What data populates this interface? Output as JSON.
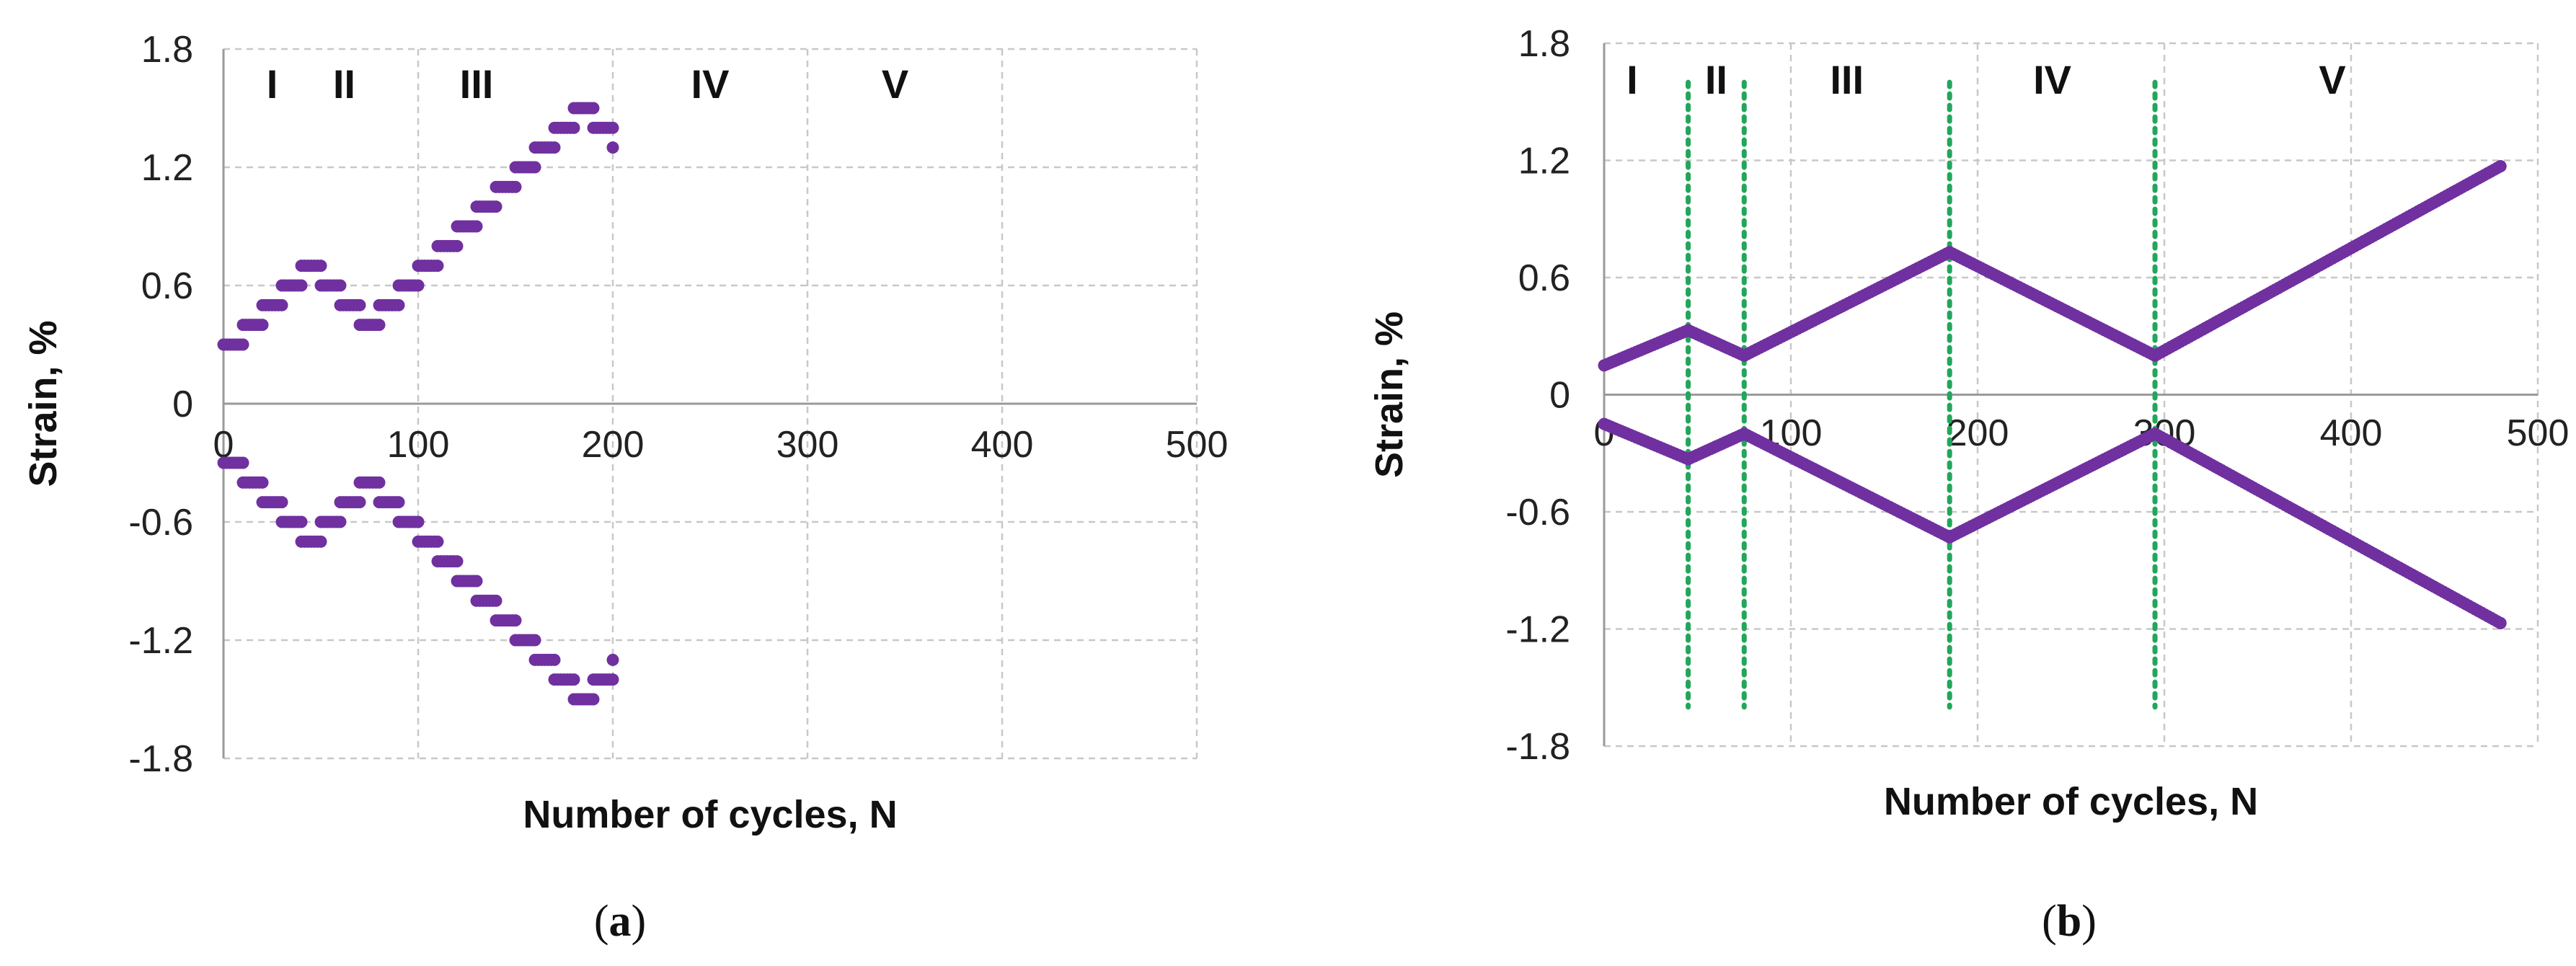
{
  "chart_data": [
    {
      "type": "scatter",
      "panel_label": "(a)",
      "panel_letter": "a",
      "xlabel": "Number of cycles, N",
      "ylabel": "Strain, %",
      "xlim": [
        0,
        500
      ],
      "ylim": [
        -1.8,
        1.8
      ],
      "xticks": [
        "0",
        "100",
        "200",
        "300",
        "400",
        "500"
      ],
      "yticks": [
        "1.8",
        "1.2",
        "0.6",
        "0",
        "-0.6",
        "-1.2",
        "-1.8"
      ],
      "grid": true,
      "marker_color": "#7030a0",
      "phases": [
        {
          "label": "I",
          "x": 25
        },
        {
          "label": "II",
          "x": 62
        },
        {
          "label": "III",
          "x": 130
        },
        {
          "label": "IV",
          "x": 250
        },
        {
          "label": "V",
          "x": 345
        }
      ],
      "series": [
        {
          "points": [
            [
              0,
              0.3
            ],
            [
              10,
              0.3
            ],
            [
              10,
              0.4
            ],
            [
              20,
              0.4
            ],
            [
              20,
              0.5
            ],
            [
              30,
              0.5
            ],
            [
              30,
              0.6
            ],
            [
              40,
              0.6
            ],
            [
              40,
              0.7
            ],
            [
              50,
              0.7
            ],
            [
              50,
              0.6
            ],
            [
              60,
              0.6
            ],
            [
              60,
              0.5
            ],
            [
              70,
              0.5
            ],
            [
              70,
              0.4
            ],
            [
              80,
              0.4
            ],
            [
              80,
              0.5
            ],
            [
              90,
              0.5
            ],
            [
              90,
              0.6
            ],
            [
              100,
              0.6
            ],
            [
              100,
              0.7
            ],
            [
              110,
              0.7
            ],
            [
              110,
              0.8
            ],
            [
              120,
              0.8
            ],
            [
              120,
              0.9
            ],
            [
              130,
              0.9
            ],
            [
              130,
              1.0
            ],
            [
              140,
              1.0
            ],
            [
              140,
              1.1
            ],
            [
              150,
              1.1
            ],
            [
              150,
              1.2
            ],
            [
              160,
              1.2
            ],
            [
              160,
              1.3
            ],
            [
              170,
              1.3
            ],
            [
              170,
              1.4
            ],
            [
              180,
              1.4
            ],
            [
              180,
              1.5
            ],
            [
              190,
              1.5
            ],
            [
              190,
              1.4
            ],
            [
              200,
              1.4
            ],
            [
              200,
              1.3
            ]
          ]
        },
        {
          "points": [
            [
              0,
              -0.3
            ],
            [
              10,
              -0.3
            ],
            [
              10,
              -0.4
            ],
            [
              20,
              -0.4
            ],
            [
              20,
              -0.5
            ],
            [
              30,
              -0.5
            ],
            [
              30,
              -0.6
            ],
            [
              40,
              -0.6
            ],
            [
              40,
              -0.7
            ],
            [
              50,
              -0.7
            ],
            [
              50,
              -0.6
            ],
            [
              60,
              -0.6
            ],
            [
              60,
              -0.5
            ],
            [
              70,
              -0.5
            ],
            [
              70,
              -0.4
            ],
            [
              80,
              -0.4
            ],
            [
              80,
              -0.5
            ],
            [
              90,
              -0.5
            ],
            [
              90,
              -0.6
            ],
            [
              100,
              -0.6
            ],
            [
              100,
              -0.7
            ],
            [
              110,
              -0.7
            ],
            [
              110,
              -0.8
            ],
            [
              120,
              -0.8
            ],
            [
              120,
              -0.9
            ],
            [
              130,
              -0.9
            ],
            [
              130,
              -1.0
            ],
            [
              140,
              -1.0
            ],
            [
              140,
              -1.1
            ],
            [
              150,
              -1.1
            ],
            [
              150,
              -1.2
            ],
            [
              160,
              -1.2
            ],
            [
              160,
              -1.3
            ],
            [
              170,
              -1.3
            ],
            [
              170,
              -1.4
            ],
            [
              180,
              -1.4
            ],
            [
              180,
              -1.5
            ],
            [
              190,
              -1.5
            ],
            [
              190,
              -1.4
            ],
            [
              200,
              -1.4
            ],
            [
              200,
              -1.3
            ]
          ]
        }
      ]
    },
    {
      "type": "scatter",
      "panel_label": "(b)",
      "panel_letter": "b",
      "xlabel": "Number of cycles, N",
      "ylabel": "Strain, %",
      "xlim": [
        0,
        500
      ],
      "ylim": [
        -1.8,
        1.8
      ],
      "xticks": [
        "0",
        "100",
        "200",
        "300",
        "400",
        "500"
      ],
      "yticks": [
        "1.8",
        "1.2",
        "0.6",
        "0",
        "-0.6",
        "-1.2",
        "-1.8"
      ],
      "grid": true,
      "marker_color": "#7030a0",
      "phase_boundaries": [
        45,
        75,
        185,
        295
      ],
      "phase_boundary_color": "#22a65a",
      "phase_boundary_ylim": [
        -1.6,
        1.6
      ],
      "phases": [
        {
          "label": "I",
          "x": 15
        },
        {
          "label": "II",
          "x": 60
        },
        {
          "label": "III",
          "x": 130
        },
        {
          "label": "IV",
          "x": 240
        },
        {
          "label": "V",
          "x": 390
        }
      ],
      "series": [
        {
          "points": [
            [
              0,
              0.15
            ],
            [
              45,
              0.33
            ],
            [
              75,
              0.2
            ],
            [
              185,
              0.73
            ],
            [
              295,
              0.2
            ],
            [
              480,
              1.17
            ]
          ]
        },
        {
          "points": [
            [
              0,
              -0.15
            ],
            [
              45,
              -0.33
            ],
            [
              75,
              -0.2
            ],
            [
              185,
              -0.73
            ],
            [
              295,
              -0.2
            ],
            [
              480,
              -1.17
            ]
          ]
        }
      ]
    }
  ]
}
